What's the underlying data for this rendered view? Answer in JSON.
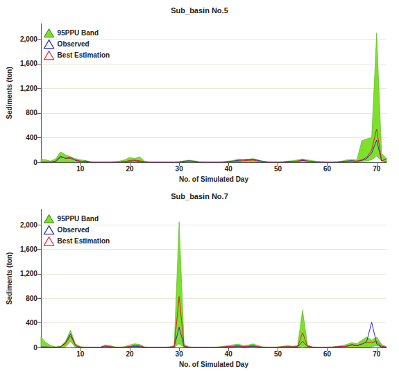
{
  "chart_data": [
    {
      "type": "line",
      "title": "Sub_basin No.5",
      "x_label": "No. of Simulated Day",
      "y_label": "Sediments (ton)",
      "x": [
        2,
        3,
        4,
        5,
        6,
        7,
        8,
        9,
        10,
        11,
        12,
        13,
        14,
        15,
        16,
        17,
        18,
        19,
        20,
        21,
        22,
        23,
        24,
        25,
        26,
        27,
        28,
        29,
        30,
        31,
        32,
        33,
        34,
        35,
        36,
        37,
        38,
        39,
        40,
        41,
        42,
        43,
        44,
        45,
        46,
        47,
        48,
        49,
        50,
        51,
        52,
        53,
        54,
        55,
        56,
        57,
        58,
        59,
        60,
        61,
        62,
        63,
        64,
        65,
        66,
        67,
        68,
        69,
        70,
        71,
        72
      ],
      "xlim": [
        2,
        72
      ],
      "xticks": [
        10,
        20,
        30,
        40,
        50,
        60,
        70
      ],
      "ylim": [
        0,
        2250
      ],
      "yticks": [
        0,
        400,
        800,
        1200,
        1600,
        2000
      ],
      "grid": true,
      "legend": "upper left",
      "series": [
        {
          "name": "95PPU Band",
          "type": "band",
          "color": "#7ee02a",
          "lower": [
            0,
            0,
            0,
            0,
            0,
            0,
            0,
            0,
            0,
            0,
            0,
            0,
            0,
            0,
            0,
            0,
            0,
            0,
            0,
            0,
            0,
            0,
            0,
            0,
            0,
            0,
            0,
            0,
            0,
            0,
            0,
            0,
            0,
            0,
            0,
            0,
            0,
            0,
            0,
            0,
            0,
            0,
            0,
            0,
            0,
            0,
            0,
            0,
            0,
            0,
            0,
            0,
            0,
            0,
            0,
            0,
            0,
            0,
            0,
            0,
            0,
            0,
            0,
            0,
            0,
            10,
            20,
            40,
            100,
            20,
            0
          ],
          "upper": [
            50,
            40,
            20,
            60,
            170,
            120,
            90,
            60,
            40,
            30,
            10,
            5,
            2,
            2,
            5,
            10,
            20,
            40,
            80,
            60,
            90,
            20,
            5,
            2,
            2,
            2,
            2,
            5,
            10,
            25,
            35,
            25,
            10,
            5,
            2,
            2,
            5,
            10,
            20,
            30,
            55,
            40,
            50,
            60,
            40,
            20,
            10,
            5,
            5,
            10,
            20,
            25,
            40,
            55,
            40,
            25,
            15,
            10,
            5,
            5,
            10,
            20,
            40,
            45,
            40,
            350,
            380,
            400,
            2100,
            150,
            60
          ]
        },
        {
          "name": "Observed",
          "type": "line",
          "color": "#2424c8",
          "values": [
            5,
            5,
            3,
            20,
            100,
            60,
            80,
            30,
            15,
            20,
            5,
            2,
            1,
            1,
            2,
            3,
            5,
            10,
            20,
            25,
            15,
            5,
            2,
            1,
            1,
            1,
            1,
            2,
            5,
            15,
            25,
            15,
            5,
            2,
            1,
            1,
            2,
            5,
            10,
            20,
            30,
            40,
            50,
            50,
            30,
            10,
            5,
            2,
            2,
            5,
            10,
            15,
            15,
            30,
            20,
            10,
            5,
            3,
            2,
            2,
            5,
            10,
            20,
            25,
            15,
            30,
            60,
            150,
            360,
            20,
            60
          ]
        },
        {
          "name": "Best Estimation",
          "type": "line",
          "color": "#e02020",
          "values": [
            3,
            3,
            2,
            10,
            80,
            70,
            60,
            40,
            20,
            10,
            3,
            1,
            1,
            1,
            2,
            3,
            5,
            10,
            30,
            35,
            25,
            5,
            1,
            1,
            1,
            1,
            1,
            2,
            5,
            10,
            20,
            12,
            5,
            2,
            1,
            1,
            2,
            5,
            10,
            15,
            20,
            25,
            30,
            35,
            20,
            10,
            5,
            2,
            2,
            5,
            10,
            15,
            20,
            40,
            20,
            10,
            5,
            3,
            2,
            2,
            5,
            10,
            15,
            20,
            20,
            40,
            80,
            200,
            540,
            30,
            10
          ]
        }
      ]
    },
    {
      "type": "line",
      "title": "Sub_basin No.7",
      "x_label": "No. of Simulated Day",
      "y_label": "Sediments (ton)",
      "x": [
        2,
        3,
        4,
        5,
        6,
        7,
        8,
        9,
        10,
        11,
        12,
        13,
        14,
        15,
        16,
        17,
        18,
        19,
        20,
        21,
        22,
        23,
        24,
        25,
        26,
        27,
        28,
        29,
        30,
        31,
        32,
        33,
        34,
        35,
        36,
        37,
        38,
        39,
        40,
        41,
        42,
        43,
        44,
        45,
        46,
        47,
        48,
        49,
        50,
        51,
        52,
        53,
        54,
        55,
        56,
        57,
        58,
        59,
        60,
        61,
        62,
        63,
        64,
        65,
        66,
        67,
        68,
        69,
        70,
        71,
        72
      ],
      "xlim": [
        2,
        72
      ],
      "xticks": [
        10,
        20,
        30,
        40,
        50,
        60,
        70
      ],
      "ylim": [
        0,
        2250
      ],
      "yticks": [
        0,
        400,
        800,
        1200,
        1600,
        2000
      ],
      "grid": true,
      "legend": "upper left",
      "series": [
        {
          "name": "95PPU Band",
          "type": "band",
          "color": "#7ee02a",
          "lower": [
            0,
            0,
            0,
            0,
            0,
            10,
            100,
            0,
            0,
            0,
            0,
            0,
            0,
            0,
            0,
            0,
            0,
            0,
            0,
            0,
            0,
            0,
            0,
            0,
            0,
            0,
            0,
            0,
            60,
            0,
            0,
            0,
            0,
            0,
            0,
            0,
            0,
            0,
            0,
            0,
            0,
            0,
            0,
            0,
            0,
            0,
            0,
            0,
            0,
            0,
            0,
            0,
            0,
            20,
            0,
            0,
            0,
            0,
            0,
            0,
            0,
            0,
            0,
            0,
            0,
            0,
            0,
            10,
            30,
            0,
            0
          ],
          "upper": [
            170,
            80,
            30,
            10,
            20,
            100,
            280,
            60,
            15,
            5,
            2,
            2,
            5,
            40,
            30,
            10,
            5,
            15,
            40,
            60,
            50,
            10,
            2,
            2,
            2,
            5,
            10,
            30,
            2050,
            50,
            10,
            5,
            2,
            2,
            2,
            5,
            10,
            20,
            30,
            45,
            55,
            30,
            40,
            60,
            30,
            10,
            5,
            2,
            10,
            20,
            30,
            20,
            30,
            610,
            40,
            10,
            5,
            2,
            5,
            10,
            20,
            30,
            50,
            80,
            60,
            120,
            170,
            120,
            170,
            50,
            10
          ]
        },
        {
          "name": "Observed",
          "type": "line",
          "color": "#2424c8",
          "values": [
            10,
            10,
            5,
            5,
            10,
            80,
            220,
            30,
            5,
            2,
            1,
            1,
            3,
            15,
            10,
            3,
            2,
            5,
            10,
            20,
            15,
            3,
            1,
            1,
            1,
            2,
            5,
            10,
            330,
            15,
            3,
            2,
            1,
            1,
            1,
            2,
            5,
            8,
            10,
            15,
            20,
            10,
            15,
            20,
            10,
            3,
            2,
            1,
            5,
            8,
            10,
            8,
            10,
            100,
            15,
            5,
            2,
            1,
            2,
            5,
            10,
            15,
            20,
            40,
            25,
            50,
            100,
            410,
            60,
            10,
            5
          ]
        },
        {
          "name": "Best Estimation",
          "type": "line",
          "color": "#e02020",
          "values": [
            5,
            5,
            3,
            3,
            8,
            60,
            190,
            30,
            5,
            2,
            1,
            1,
            3,
            25,
            15,
            3,
            2,
            5,
            15,
            30,
            25,
            3,
            1,
            1,
            1,
            2,
            5,
            10,
            830,
            20,
            3,
            2,
            1,
            1,
            1,
            2,
            5,
            8,
            15,
            20,
            30,
            12,
            20,
            30,
            12,
            3,
            2,
            1,
            5,
            10,
            12,
            10,
            15,
            240,
            20,
            5,
            2,
            1,
            2,
            5,
            10,
            15,
            20,
            50,
            30,
            60,
            80,
            80,
            100,
            20,
            5
          ]
        }
      ]
    }
  ]
}
